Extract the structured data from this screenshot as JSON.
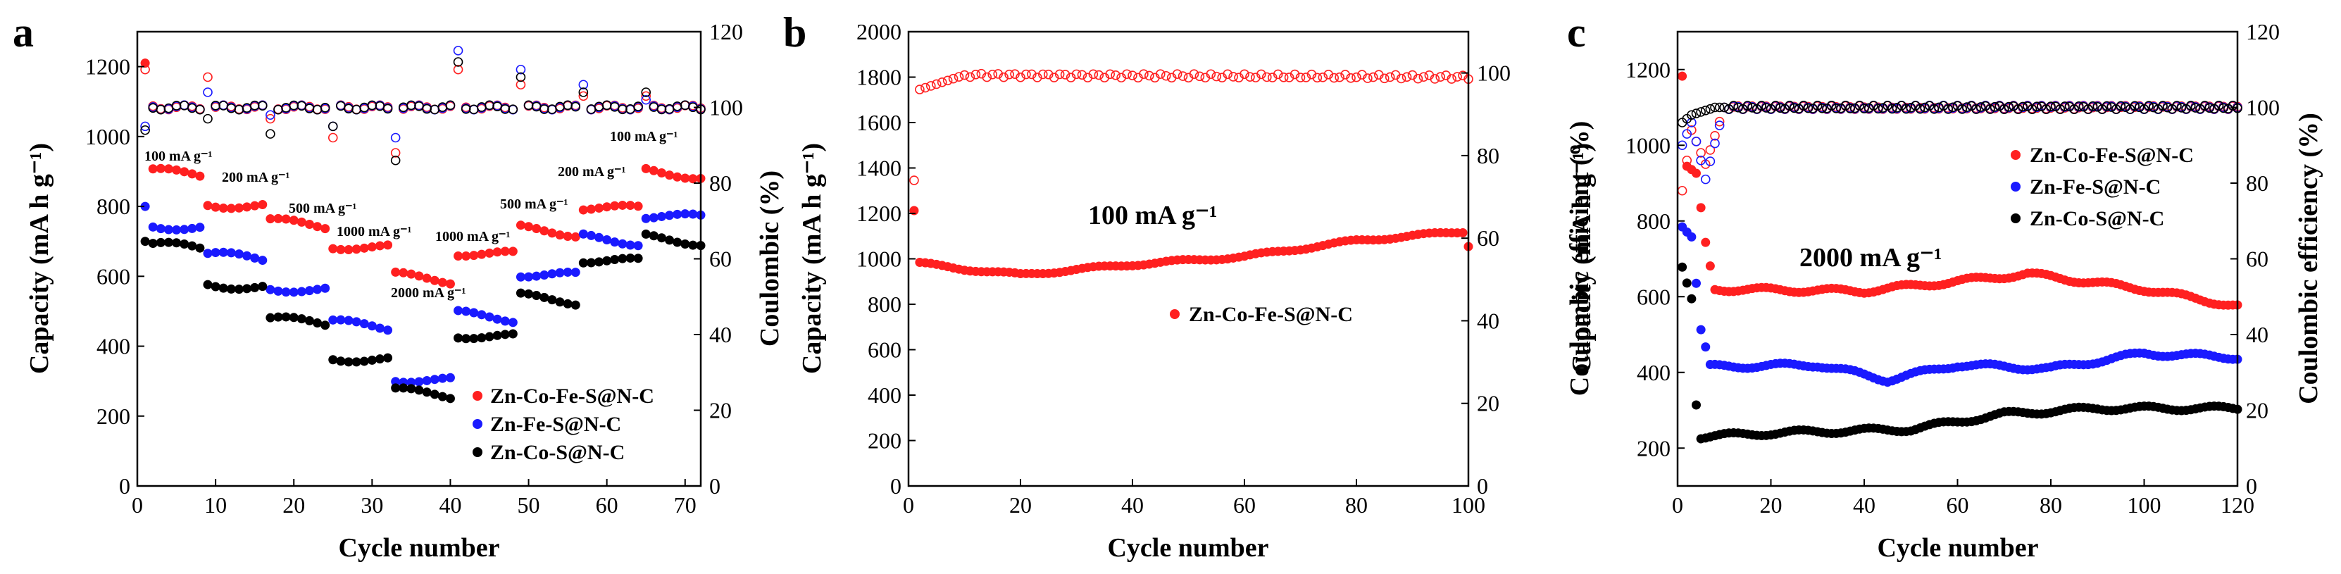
{
  "chart_data": [
    {
      "panel": "a",
      "type": "scatter",
      "xlabel": "Cycle number",
      "ylabel": "Capacity (mA h g⁻¹)",
      "ylabel_right": "Coulombic (%)",
      "xlim": [
        0,
        72
      ],
      "ylim": [
        0,
        1300
      ],
      "y2lim": [
        0,
        120
      ],
      "xticks": [
        0,
        10,
        20,
        30,
        40,
        50,
        60,
        70
      ],
      "yticks": [
        0,
        200,
        400,
        600,
        800,
        1000,
        1200
      ],
      "y2ticks": [
        0,
        20,
        40,
        60,
        80,
        100,
        120
      ],
      "legend_position": "bottom-right",
      "rate_steps": [
        {
          "start": 1,
          "end": 8,
          "label": "100 mA g⁻¹"
        },
        {
          "start": 9,
          "end": 16,
          "label": "200 mA g⁻¹"
        },
        {
          "start": 17,
          "end": 24,
          "label": "500 mA g⁻¹"
        },
        {
          "start": 25,
          "end": 32,
          "label": "1000 mA g⁻¹"
        },
        {
          "start": 33,
          "end": 40,
          "label": "2000 mA g⁻¹"
        },
        {
          "start": 41,
          "end": 48,
          "label": "1000 mA g⁻¹"
        },
        {
          "start": 49,
          "end": 56,
          "label": "500 mA g⁻¹"
        },
        {
          "start": 57,
          "end": 64,
          "label": "200 mA g⁻¹"
        },
        {
          "start": 65,
          "end": 72,
          "label": "100 mA g⁻¹"
        }
      ],
      "series": [
        {
          "name": "Zn-Co-Fe-S@N-C",
          "color": "#ff2020",
          "capacity_by_step": [
            900,
            810,
            755,
            690,
            600,
            670,
            735,
            800,
            900
          ],
          "first_cycle_capacity": 1210,
          "ce_base": 100,
          "ce_first": 110,
          "ce_spikes": [
            108,
            97,
            92,
            88,
            110,
            106,
            103,
            103
          ]
        },
        {
          "name": "Zn-Fe-S@N-C",
          "color": "#1a1aff",
          "capacity_by_step": [
            750,
            660,
            570,
            465,
            310,
            490,
            610,
            710,
            775
          ],
          "first_cycle_capacity": 800,
          "ce_base": 100,
          "ce_first": 95,
          "ce_spikes": [
            104,
            98,
            95,
            92,
            115,
            110,
            106,
            102
          ]
        },
        {
          "name": "Zn-Co-S@N-C",
          "color": "#000000",
          "capacity_by_step": [
            690,
            580,
            475,
            370,
            270,
            435,
            540,
            650,
            710
          ],
          "first_cycle_capacity": 700,
          "ce_base": 100,
          "ce_first": 94,
          "ce_spikes": [
            97,
            93,
            95,
            86,
            112,
            108,
            104,
            104
          ]
        }
      ]
    },
    {
      "panel": "b",
      "type": "scatter",
      "xlabel": "Cycle number",
      "ylabel": "Capacity (mA h g⁻¹)",
      "ylabel_right": "Coulombic efficient (%)",
      "xlim": [
        0,
        100
      ],
      "ylim": [
        0,
        2000
      ],
      "y2lim": [
        0,
        110
      ],
      "xticks": [
        0,
        20,
        40,
        60,
        80,
        100
      ],
      "yticks": [
        0,
        200,
        400,
        600,
        800,
        1000,
        1200,
        1400,
        1600,
        1800,
        2000
      ],
      "y2ticks": [
        0,
        20,
        40,
        60,
        80,
        100
      ],
      "annotation": "100 mA g⁻¹",
      "legend_position": "center-right",
      "series": [
        {
          "name": "Zn-Co-Fe-S@N-C",
          "color": "#ff2020",
          "capacity_keypoints": [
            [
              1,
              1210
            ],
            [
              2,
              980
            ],
            [
              10,
              955
            ],
            [
              20,
              930
            ],
            [
              40,
              975
            ],
            [
              60,
              1010
            ],
            [
              80,
              1080
            ],
            [
              99,
              1120
            ],
            [
              100,
              1060
            ]
          ],
          "ce_keypoints": [
            [
              1,
              74
            ],
            [
              2,
              96
            ],
            [
              10,
              99.5
            ],
            [
              100,
              99
            ]
          ]
        }
      ]
    },
    {
      "panel": "c",
      "type": "scatter",
      "xlabel": "Cycle number",
      "ylabel": "Capacity (mA h g⁻¹)",
      "ylabel_right": "Coulombic efficiency (%)",
      "xlim": [
        0,
        120
      ],
      "ylim": [
        100,
        1300
      ],
      "y2lim": [
        0,
        120
      ],
      "xticks": [
        0,
        20,
        40,
        60,
        80,
        100,
        120
      ],
      "yticks": [
        200,
        400,
        600,
        800,
        1000,
        1200
      ],
      "y2ticks": [
        0,
        20,
        40,
        60,
        80,
        100,
        120
      ],
      "annotation": "2000 mA g⁻¹",
      "legend_position": "top-right",
      "series": [
        {
          "name": "Zn-Co-Fe-S@N-C",
          "color": "#ff2020",
          "capacity_keypoints": [
            [
              1,
              1180
            ],
            [
              2,
              940
            ],
            [
              4,
              920
            ],
            [
              6,
              740
            ],
            [
              8,
              620
            ],
            [
              40,
              615
            ],
            [
              75,
              660
            ],
            [
              100,
              620
            ],
            [
              120,
              575
            ]
          ],
          "ce_keypoints": [
            [
              1,
              78
            ],
            [
              3,
              94
            ],
            [
              6,
              85
            ],
            [
              10,
              100
            ],
            [
              120,
              100
            ]
          ]
        },
        {
          "name": "Zn-Fe-S@N-C",
          "color": "#1a1aff",
          "capacity_keypoints": [
            [
              1,
              790
            ],
            [
              3,
              760
            ],
            [
              5,
              510
            ],
            [
              7,
              415
            ],
            [
              30,
              420
            ],
            [
              45,
              380
            ],
            [
              60,
              420
            ],
            [
              80,
              410
            ],
            [
              100,
              450
            ],
            [
              120,
              440
            ]
          ],
          "ce_keypoints": [
            [
              1,
              90
            ],
            [
              3,
              96
            ],
            [
              6,
              81
            ],
            [
              10,
              100
            ],
            [
              120,
              100
            ]
          ]
        },
        {
          "name": "Zn-Co-S@N-C",
          "color": "#000000",
          "capacity_keypoints": [
            [
              1,
              680
            ],
            [
              3,
              600
            ],
            [
              4,
              320
            ],
            [
              5,
              230
            ],
            [
              20,
              240
            ],
            [
              50,
              250
            ],
            [
              70,
              290
            ],
            [
              90,
              305
            ],
            [
              120,
              305
            ]
          ],
          "ce_keypoints": [
            [
              1,
              96
            ],
            [
              3,
              98
            ],
            [
              8,
              100
            ],
            [
              120,
              100
            ]
          ]
        }
      ]
    }
  ]
}
